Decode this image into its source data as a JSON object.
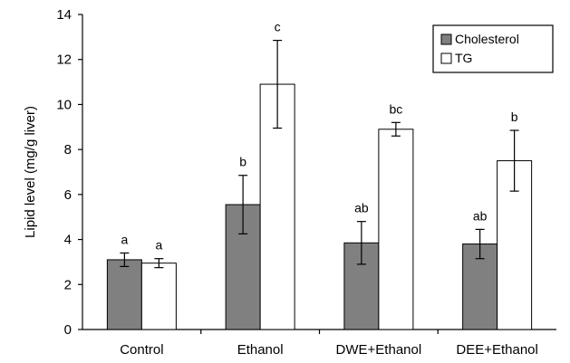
{
  "chart_data": {
    "type": "bar",
    "ylabel": "Lipid level (mg/g liver)",
    "xlabel": "",
    "ylim": [
      0,
      14
    ],
    "yticks": [
      0,
      2,
      4,
      6,
      8,
      10,
      12,
      14
    ],
    "categories": [
      "Control",
      "Ethanol",
      "DWE+Ethanol",
      "DEE+Ethanol"
    ],
    "series": [
      {
        "name": "Cholesterol",
        "color": "#808080",
        "values": [
          3.1,
          5.55,
          3.85,
          3.8
        ],
        "errors": [
          0.3,
          1.3,
          0.95,
          0.65
        ],
        "significance": [
          "a",
          "b",
          "ab",
          "ab"
        ]
      },
      {
        "name": "TG",
        "color": "#ffffff",
        "values": [
          2.95,
          10.9,
          8.9,
          7.5
        ],
        "errors": [
          0.2,
          1.95,
          0.3,
          1.35
        ],
        "significance": [
          "a",
          "c",
          "bc",
          "b"
        ]
      }
    ],
    "legend": "top-right",
    "grid": false
  }
}
